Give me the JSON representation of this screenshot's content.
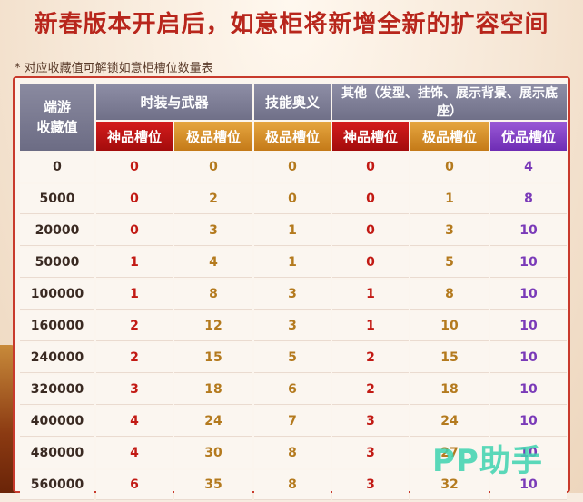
{
  "heading": "新春版本开启后，如意柜将新增全新的扩容空间",
  "note": "* 对应收藏值可解锁如意柜槽位数量表",
  "table": {
    "corner_line1": "端游",
    "corner_line2": "收藏值",
    "groups": [
      "时装与武器",
      "技能奥义",
      "其他（发型、挂饰、展示背景、展示底座）"
    ],
    "subheaders": [
      "神品槽位",
      "极品槽位",
      "极品槽位",
      "神品槽位",
      "极品槽位",
      "优品槽位"
    ],
    "rows": [
      [
        "0",
        "0",
        "0",
        "0",
        "0",
        "0",
        "4"
      ],
      [
        "5000",
        "0",
        "2",
        "0",
        "0",
        "1",
        "8"
      ],
      [
        "20000",
        "0",
        "3",
        "1",
        "0",
        "3",
        "10"
      ],
      [
        "50000",
        "1",
        "4",
        "1",
        "0",
        "5",
        "10"
      ],
      [
        "100000",
        "1",
        "8",
        "3",
        "1",
        "8",
        "10"
      ],
      [
        "160000",
        "2",
        "12",
        "3",
        "1",
        "10",
        "10"
      ],
      [
        "240000",
        "2",
        "15",
        "5",
        "2",
        "15",
        "10"
      ],
      [
        "320000",
        "3",
        "18",
        "6",
        "2",
        "18",
        "10"
      ],
      [
        "400000",
        "4",
        "24",
        "7",
        "3",
        "24",
        "10"
      ],
      [
        "480000",
        "4",
        "30",
        "8",
        "3",
        "27",
        "10"
      ],
      [
        "560000",
        "6",
        "35",
        "8",
        "3",
        "32",
        "10"
      ]
    ]
  },
  "watermark": "PP助手",
  "colors": {
    "heading": "#b8261c",
    "god_slot": "#c21a14",
    "epic_slot": "#b47a1e",
    "fine_slot": "#7a3ab8"
  }
}
